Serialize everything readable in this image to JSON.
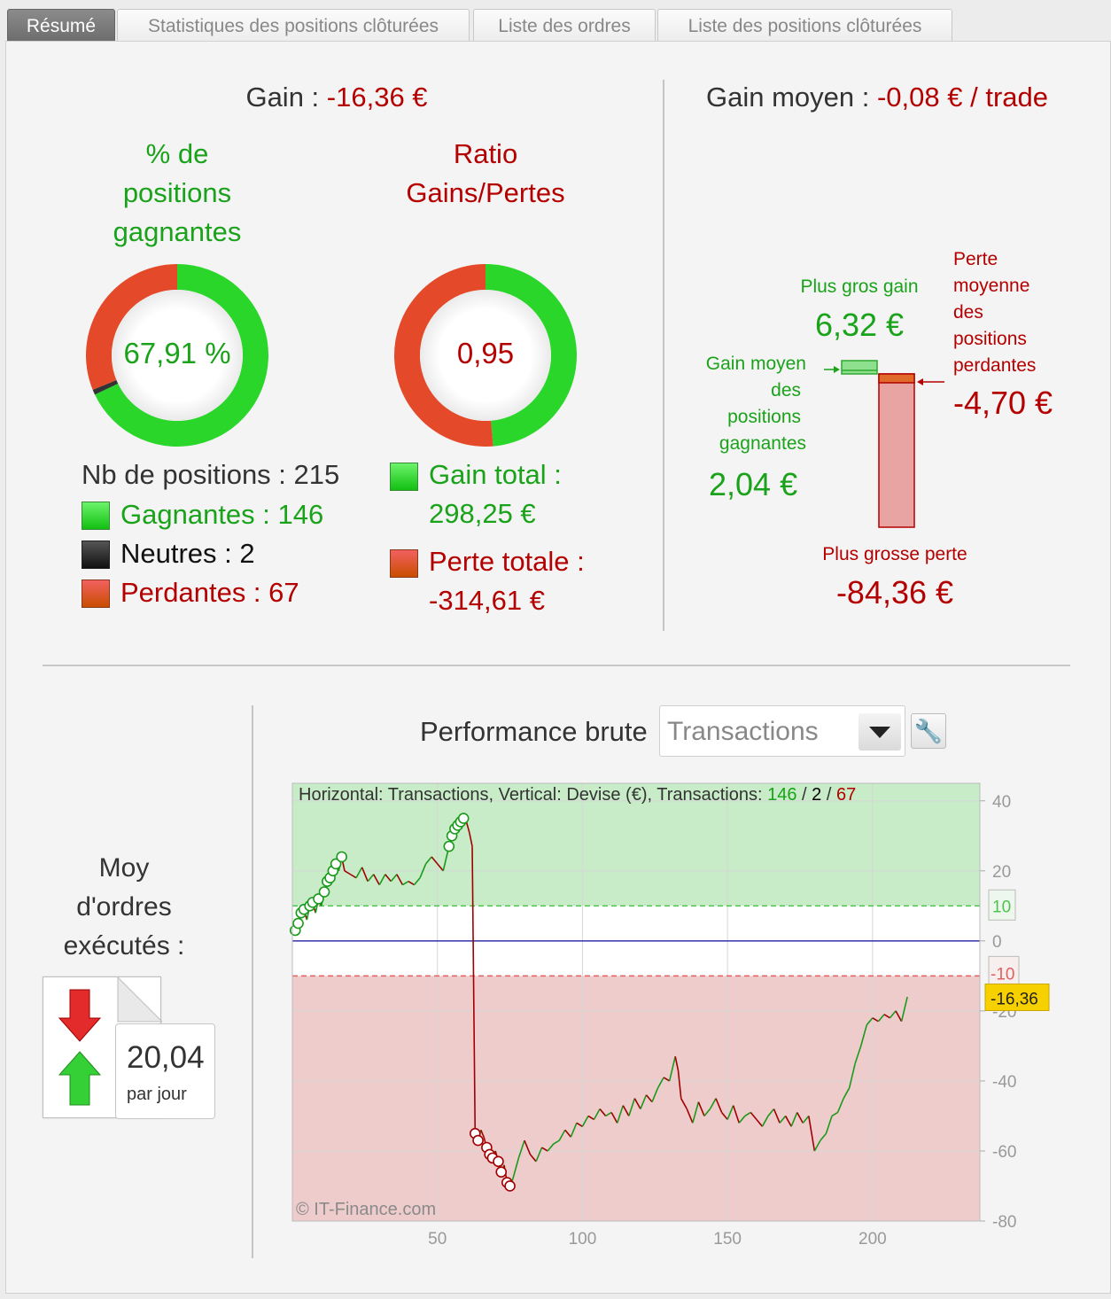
{
  "tabs": [
    {
      "label": "Résumé",
      "active": true
    },
    {
      "label": "Statistiques des positions clôturées",
      "active": false
    },
    {
      "label": "Liste des ordres",
      "active": false
    },
    {
      "label": "Liste des positions clôturées",
      "active": false
    }
  ],
  "summary": {
    "gain_label": "Gain : ",
    "gain_value": "-16,36 €",
    "avg_gain_label": "Gain moyen : ",
    "avg_gain_value": "-0,08 € / trade",
    "win_pct_title_1": "% de",
    "win_pct_title_2": "positions",
    "win_pct_title_3": "gagnantes",
    "win_pct_value": "67,91 %",
    "ratio_title_1": "Ratio",
    "ratio_title_2": "Gains/Pertes",
    "ratio_value": "0,95",
    "nb_positions": "Nb de positions : 215",
    "winners": "Gagnantes : 146",
    "neutrals": "Neutres : 2",
    "losers": "Perdantes : 67",
    "total_gain_label": "Gain total :",
    "total_gain_value": "298,25 €",
    "total_loss_label": "Perte totale :",
    "total_loss_value": "-314,61 €",
    "win_fraction": 0.6791,
    "neutral_fraction": 0.0093,
    "ratio_gain_fraction": 0.4867
  },
  "boxplot": {
    "biggest_gain_label": "Plus gros gain",
    "biggest_gain_value": "6,32 €",
    "avg_win_label_1": "Gain moyen",
    "avg_win_label_2": "des",
    "avg_win_label_3": "positions",
    "avg_win_label_4": "gagnantes",
    "avg_win_value": "2,04 €",
    "avg_loss_label_1": "Perte",
    "avg_loss_label_2": "moyenne",
    "avg_loss_label_3": "des",
    "avg_loss_label_4": "positions",
    "avg_loss_label_5": "perdantes",
    "avg_loss_value": "-4,70 €",
    "biggest_loss_label": "Plus grosse perte",
    "biggest_loss_value": "-84,36 €"
  },
  "orders": {
    "title_1": "Moy",
    "title_2": "d'ordres",
    "title_3": "exécutés :",
    "value": "20,04",
    "unit": "par jour"
  },
  "performance": {
    "title": "Performance brute",
    "select_value": "Transactions",
    "header_prefix": "Horizontal: Transactions, Vertical: Devise (€), Transactions: ",
    "count_win": "146",
    "sep1": " / ",
    "count_neutral": "2",
    "sep2": " / ",
    "count_loss": "67",
    "watermark": "© IT-Finance.com",
    "current_label": "-16,36",
    "upper_threshold_label": "10",
    "lower_threshold_label": "-10"
  },
  "chart_data": {
    "type": "line",
    "x_ticks": [
      50,
      100,
      150,
      200
    ],
    "y_ticks": [
      40,
      20,
      0,
      -20,
      -40,
      -60,
      -80
    ],
    "xlim": [
      0,
      237
    ],
    "ylim": [
      -80,
      45
    ],
    "thresholds": {
      "upper": 10,
      "lower": -10
    },
    "current_value": -16.36,
    "points": [
      [
        1,
        3
      ],
      [
        2,
        5
      ],
      [
        3,
        8
      ],
      [
        4,
        9
      ],
      [
        5,
        6
      ],
      [
        6,
        10
      ],
      [
        7,
        11
      ],
      [
        8,
        8
      ],
      [
        9,
        12
      ],
      [
        10,
        10
      ],
      [
        11,
        14
      ],
      [
        12,
        17
      ],
      [
        13,
        18
      ],
      [
        14,
        20
      ],
      [
        15,
        22
      ],
      [
        16,
        20
      ],
      [
        17,
        24
      ],
      [
        18,
        20
      ],
      [
        20,
        19
      ],
      [
        22,
        18
      ],
      [
        24,
        21
      ],
      [
        26,
        17
      ],
      [
        28,
        19
      ],
      [
        30,
        16
      ],
      [
        32,
        19
      ],
      [
        34,
        17
      ],
      [
        36,
        19
      ],
      [
        38,
        16
      ],
      [
        40,
        17
      ],
      [
        42,
        16
      ],
      [
        44,
        18
      ],
      [
        46,
        22
      ],
      [
        48,
        24
      ],
      [
        50,
        22
      ],
      [
        52,
        20
      ],
      [
        54,
        27
      ],
      [
        55,
        30
      ],
      [
        56,
        32
      ],
      [
        57,
        33
      ],
      [
        58,
        34
      ],
      [
        59,
        35
      ],
      [
        60,
        34
      ],
      [
        61,
        31
      ],
      [
        62,
        27
      ],
      [
        63,
        -55
      ],
      [
        64,
        -57
      ],
      [
        65,
        -54
      ],
      [
        66,
        -56
      ],
      [
        67,
        -59
      ],
      [
        68,
        -61
      ],
      [
        69,
        -62
      ],
      [
        70,
        -60
      ],
      [
        71,
        -63
      ],
      [
        72,
        -66
      ],
      [
        73,
        -64
      ],
      [
        74,
        -69
      ],
      [
        75,
        -70
      ],
      [
        76,
        -68
      ],
      [
        78,
        -62
      ],
      [
        80,
        -57
      ],
      [
        82,
        -61
      ],
      [
        84,
        -63
      ],
      [
        86,
        -59
      ],
      [
        88,
        -60
      ],
      [
        90,
        -58
      ],
      [
        92,
        -57
      ],
      [
        94,
        -54
      ],
      [
        96,
        -56
      ],
      [
        98,
        -52
      ],
      [
        100,
        -53
      ],
      [
        102,
        -50
      ],
      [
        104,
        -51
      ],
      [
        106,
        -48
      ],
      [
        108,
        -50
      ],
      [
        110,
        -49
      ],
      [
        112,
        -52
      ],
      [
        114,
        -47
      ],
      [
        116,
        -50
      ],
      [
        118,
        -45
      ],
      [
        120,
        -48
      ],
      [
        122,
        -44
      ],
      [
        124,
        -46
      ],
      [
        126,
        -42
      ],
      [
        128,
        -39
      ],
      [
        130,
        -40
      ],
      [
        132,
        -33
      ],
      [
        133,
        -37
      ],
      [
        134,
        -45
      ],
      [
        136,
        -48
      ],
      [
        138,
        -52
      ],
      [
        140,
        -46
      ],
      [
        142,
        -50
      ],
      [
        144,
        -48
      ],
      [
        146,
        -45
      ],
      [
        148,
        -49
      ],
      [
        150,
        -51
      ],
      [
        152,
        -47
      ],
      [
        154,
        -52
      ],
      [
        156,
        -50
      ],
      [
        158,
        -49
      ],
      [
        160,
        -51
      ],
      [
        162,
        -53
      ],
      [
        164,
        -50
      ],
      [
        166,
        -48
      ],
      [
        168,
        -52
      ],
      [
        170,
        -50
      ],
      [
        172,
        -53
      ],
      [
        174,
        -49
      ],
      [
        176,
        -52
      ],
      [
        178,
        -50
      ],
      [
        180,
        -60
      ],
      [
        182,
        -57
      ],
      [
        184,
        -55
      ],
      [
        186,
        -50
      ],
      [
        188,
        -49
      ],
      [
        190,
        -45
      ],
      [
        192,
        -42
      ],
      [
        194,
        -35
      ],
      [
        196,
        -30
      ],
      [
        198,
        -24
      ],
      [
        200,
        -22
      ],
      [
        202,
        -23
      ],
      [
        204,
        -21
      ],
      [
        206,
        -22
      ],
      [
        208,
        -20
      ],
      [
        210,
        -23
      ],
      [
        212,
        -16
      ]
    ]
  }
}
